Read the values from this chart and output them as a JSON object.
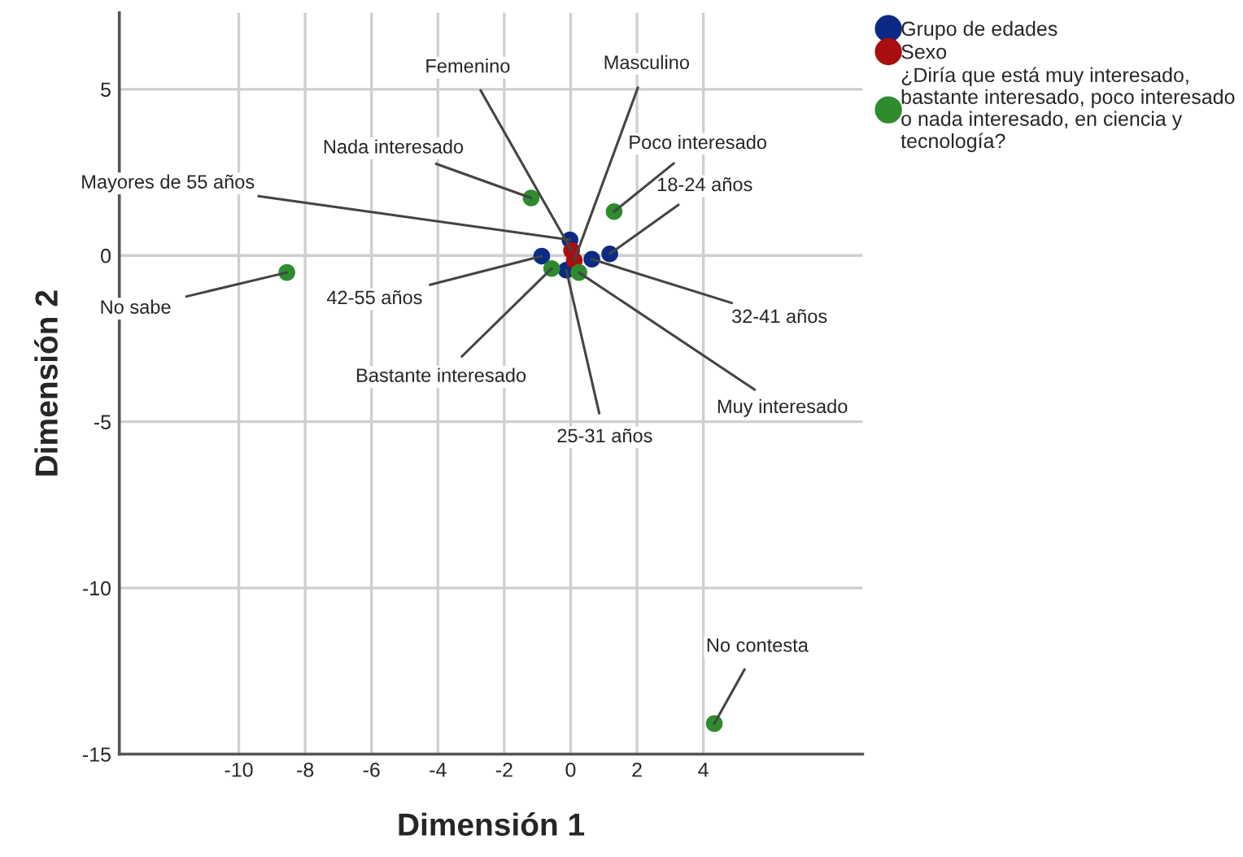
{
  "chart_data": {
    "type": "scatter",
    "xlabel": "Dimensión 1",
    "ylabel": "Dimensión 2",
    "xlim": [
      -13.6,
      8.8
    ],
    "xticks": [
      -10,
      -8,
      -6,
      -4,
      -2,
      0,
      2,
      4
    ],
    "ylim": [
      -15,
      7.3
    ],
    "yticks": [
      -15,
      -10,
      -5,
      0,
      5
    ],
    "grid": true,
    "legend": "top right",
    "marker": "circle",
    "series": [
      {
        "name": "Grupo de edades",
        "color": "#0a2a84",
        "x": [
          1.18,
          -0.13,
          0.64,
          -0.87,
          -0.02
        ],
        "values": [
          0.05,
          -0.44,
          -0.11,
          -0.02,
          0.47
        ]
      },
      {
        "name": "Sexo",
        "color": "#a81010",
        "x": [
          0.03,
          0.11
        ],
        "values": [
          0.15,
          -0.15
        ]
      },
      {
        "name": "¿Diría que está muy interesado, bastante interesado, poco interesado o nada interesado, en ciencia y tecnología?",
        "color": "#2e8b2e",
        "x": [
          0.25,
          -0.57,
          1.31,
          -1.19,
          -8.55,
          4.33
        ],
        "values": [
          -0.51,
          -0.39,
          1.32,
          1.73,
          -0.51,
          -14.08
        ]
      }
    ],
    "annotations": [
      {
        "text": "18-24 años",
        "x": 1.18,
        "y": 0.05
      },
      {
        "text": "25-31 años",
        "x": -0.13,
        "y": -0.44
      },
      {
        "text": "32-41 años",
        "x": 0.64,
        "y": -0.11
      },
      {
        "text": "42-55 años",
        "x": -0.87,
        "y": -0.02
      },
      {
        "text": "Mayores de 55 años",
        "x": -0.02,
        "y": 0.47
      },
      {
        "text": "Femenino",
        "x": 0.03,
        "y": 0.15
      },
      {
        "text": "Masculino",
        "x": 0.11,
        "y": -0.15
      },
      {
        "text": "Muy interesado",
        "x": 0.25,
        "y": -0.51
      },
      {
        "text": "Bastante interesado",
        "x": -0.57,
        "y": -0.39
      },
      {
        "text": "Poco interesado",
        "x": 1.31,
        "y": 1.32
      },
      {
        "text": "Nada interesado",
        "x": -1.19,
        "y": 1.73
      },
      {
        "text": "No sabe",
        "x": -8.55,
        "y": -0.51
      },
      {
        "text": "No contesta",
        "x": 4.33,
        "y": -14.08
      }
    ]
  }
}
